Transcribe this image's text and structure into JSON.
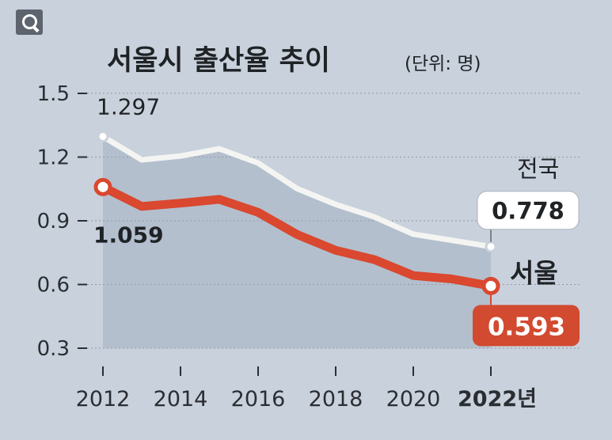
{
  "title": "서울시 출산율 추이",
  "unit_note": "(단위: 명)",
  "zoom_icon": "magnifier-icon",
  "colors": {
    "background": "#c9d1dc",
    "national_line": "#f4f5f2",
    "seoul_line": "#d9482f",
    "seoul_badge": "#d24a2f",
    "text": "#1f2326",
    "shade": "#9aa9bb"
  },
  "chart_data": {
    "type": "line",
    "title": "서울시 출산율 추이",
    "unit": "(단위: 명)",
    "x": [
      2012,
      2013,
      2014,
      2015,
      2016,
      2017,
      2018,
      2019,
      2020,
      2021,
      2022
    ],
    "x_tick_labels": [
      "2012",
      "2014",
      "2016",
      "2018",
      "2020",
      "2022년"
    ],
    "x_tick_values": [
      2012,
      2014,
      2016,
      2018,
      2020,
      2022
    ],
    "y_ticks": [
      0.3,
      0.6,
      0.9,
      1.2,
      1.5
    ],
    "y_tick_labels": [
      "0.3",
      "0.6",
      "0.9",
      "1.2",
      "1.5"
    ],
    "ylim": [
      0.3,
      1.5
    ],
    "grid": true,
    "series": [
      {
        "name": "전국",
        "key": "national",
        "values": [
          1.297,
          1.187,
          1.205,
          1.239,
          1.172,
          1.052,
          0.977,
          0.918,
          0.837,
          0.808,
          0.778
        ],
        "labels": {
          "first": "1.297",
          "last": "0.778"
        }
      },
      {
        "name": "서울",
        "key": "seoul",
        "values": [
          1.059,
          0.968,
          0.983,
          1.001,
          0.94,
          0.836,
          0.761,
          0.717,
          0.642,
          0.626,
          0.593
        ],
        "labels": {
          "first": "1.059",
          "last": "0.593"
        }
      }
    ]
  }
}
